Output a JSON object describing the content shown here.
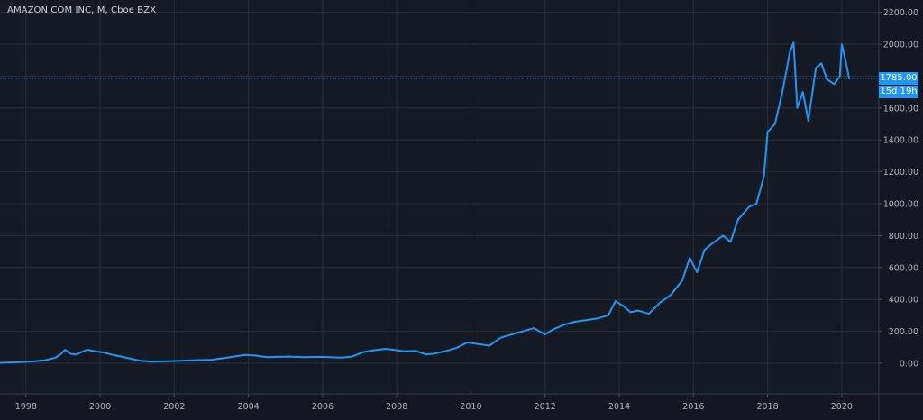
{
  "header": {
    "title": "AMAZON COM INC, M, Cboe BZX"
  },
  "colors": {
    "line": "#2196f3",
    "grid": "#2a2e39",
    "text": "#b2b5be",
    "background": "#151924"
  },
  "current": {
    "price_label": "1785.00",
    "countdown_label": "15d 19h"
  },
  "chart_data": {
    "type": "line",
    "xlim": [
      1997.3,
      2021.0
    ],
    "ylim": [
      -150,
      2200
    ],
    "x_ticks": [
      1998,
      2000,
      2002,
      2004,
      2006,
      2008,
      2010,
      2012,
      2014,
      2016,
      2018,
      2020
    ],
    "x_tick_labels": [
      "1998",
      "2000",
      "2002",
      "2004",
      "2006",
      "2008",
      "2010",
      "2012",
      "2014",
      "2016",
      "2018",
      "2020"
    ],
    "y_ticks": [
      0,
      200,
      400,
      600,
      800,
      1000,
      1200,
      1400,
      1600,
      1800,
      2000,
      2200
    ],
    "y_tick_labels": [
      "0.00",
      "200.00",
      "400.00",
      "600.00",
      "800.00",
      "1000.00",
      "1200.00",
      "1400.00",
      "1600.00",
      "1800.00",
      "2000.00",
      "2200.00"
    ],
    "last_price": 1785.0,
    "grid": true,
    "series": [
      {
        "x": [
          1997.3,
          1997.6,
          1997.9,
          1998.2,
          1998.5,
          1998.8,
          1998.95,
          1999.05,
          1999.2,
          1999.35,
          1999.5,
          1999.65,
          1999.8,
          1999.95,
          2000.1,
          2000.3,
          2000.6,
          2000.9,
          2001.1,
          2001.4,
          2001.7,
          2002.0,
          2002.5,
          2003.0,
          2003.5,
          2003.9,
          2004.2,
          2004.5,
          2004.8,
          2005.1,
          2005.5,
          2005.9,
          2006.2,
          2006.5,
          2006.8,
          2007.1,
          2007.4,
          2007.7,
          2007.9,
          2008.2,
          2008.5,
          2008.8,
          2009.0,
          2009.3,
          2009.6,
          2009.9,
          2010.2,
          2010.5,
          2010.8,
          2011.1,
          2011.4,
          2011.7,
          2012.0,
          2012.2,
          2012.5,
          2012.8,
          2013.1,
          2013.4,
          2013.7,
          2013.9,
          2014.1,
          2014.3,
          2014.5,
          2014.8,
          2015.1,
          2015.4,
          2015.7,
          2015.9,
          2016.1,
          2016.3,
          2016.5,
          2016.8,
          2017.0,
          2017.2,
          2017.5,
          2017.7,
          2017.9,
          2018.0,
          2018.2,
          2018.4,
          2018.6,
          2018.7,
          2018.8,
          2018.95,
          2019.1,
          2019.3,
          2019.45,
          2019.6,
          2019.8,
          2019.95,
          2020.0,
          2020.1,
          2020.2
        ],
        "values": [
          3,
          5,
          8,
          12,
          18,
          35,
          60,
          85,
          60,
          55,
          70,
          85,
          78,
          72,
          68,
          55,
          40,
          25,
          15,
          10,
          12,
          14,
          18,
          22,
          38,
          52,
          48,
          38,
          40,
          42,
          38,
          40,
          38,
          35,
          42,
          70,
          82,
          90,
          85,
          75,
          78,
          55,
          60,
          75,
          95,
          130,
          120,
          110,
          160,
          180,
          200,
          220,
          180,
          210,
          240,
          260,
          270,
          280,
          300,
          390,
          360,
          320,
          330,
          310,
          380,
          430,
          520,
          660,
          570,
          710,
          750,
          800,
          760,
          900,
          980,
          1000,
          1170,
          1450,
          1500,
          1700,
          1950,
          2010,
          1600,
          1700,
          1520,
          1850,
          1880,
          1780,
          1750,
          1800,
          2000,
          1900,
          1785
        ]
      }
    ]
  }
}
